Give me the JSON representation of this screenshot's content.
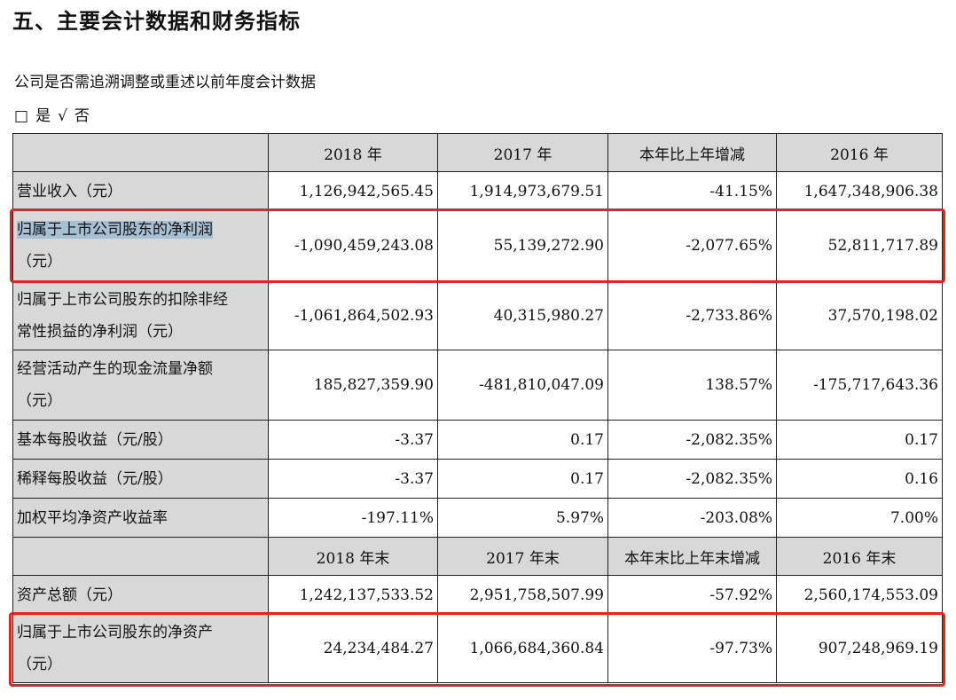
{
  "section_title": "五、主要会计数据和财务指标",
  "question": "公司是否需追溯调整或重述以前年度会计数据",
  "options": {
    "yes_mark": "□",
    "yes": "是",
    "no_mark": "√",
    "no": "否"
  },
  "table": {
    "header1": [
      "",
      "2018 年",
      "2017 年",
      "本年比上年增减",
      "2016 年"
    ],
    "rows1": [
      {
        "label": "营业收入（元）",
        "values": [
          "1,126,942,565.45",
          "1,914,973,679.51",
          "-41.15%",
          "1,647,348,906.38"
        ]
      },
      {
        "label": "归属于上市公司股东的净利润",
        "label2": "（元）",
        "values": [
          "-1,090,459,243.08",
          "55,139,272.90",
          "-2,077.65%",
          "52,811,717.89"
        ]
      },
      {
        "label": "归属于上市公司股东的扣除非经",
        "label2": "常性损益的净利润（元）",
        "values": [
          "-1,061,864,502.93",
          "40,315,980.27",
          "-2,733.86%",
          "37,570,198.02"
        ]
      },
      {
        "label": "经营活动产生的现金流量净额",
        "label2": "（元）",
        "values": [
          "185,827,359.90",
          "-481,810,047.09",
          "138.57%",
          "-175,717,643.36"
        ]
      },
      {
        "label": "基本每股收益（元/股）",
        "values": [
          "-3.37",
          "0.17",
          "-2,082.35%",
          "0.17"
        ]
      },
      {
        "label": "稀释每股收益（元/股）",
        "values": [
          "-3.37",
          "0.17",
          "-2,082.35%",
          "0.16"
        ]
      },
      {
        "label": "加权平均净资产收益率",
        "values": [
          "-197.11%",
          "5.97%",
          "-203.08%",
          "7.00%"
        ]
      }
    ],
    "header2": [
      "",
      "2018 年末",
      "2017 年末",
      "本年末比上年末增减",
      "2016 年末"
    ],
    "rows2": [
      {
        "label": "资产总额（元）",
        "values": [
          "1,242,137,533.52",
          "2,951,758,507.99",
          "-57.92%",
          "2,560,174,553.09"
        ]
      },
      {
        "label": "归属于上市公司股东的净资产",
        "label2": "（元）",
        "values": [
          "24,234,484.27",
          "1,066,684,360.84",
          "-97.73%",
          "907,248,969.19"
        ]
      }
    ]
  },
  "colors": {
    "highlight_box": "#e8221f",
    "label_bg": "#d8d8d8",
    "text_selection": "#a8c0d4"
  }
}
